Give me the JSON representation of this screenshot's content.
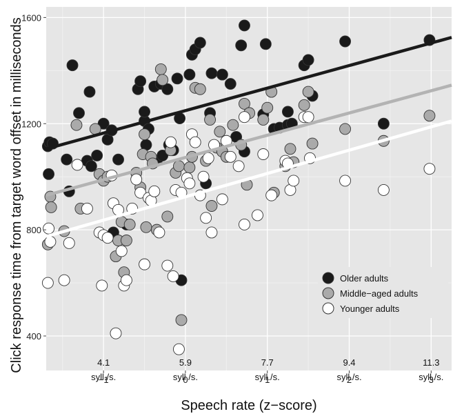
{
  "chart_data": {
    "type": "scatter",
    "xlabel": "Speech rate (z−score)",
    "ylabel": "Click response time from target word offset in milliseconds",
    "xlim": [
      -1.7,
      3.25
    ],
    "ylim": [
      270,
      1640
    ],
    "x_ticks": [
      -1,
      0,
      1,
      2,
      3
    ],
    "x_tick_labels": [
      "−1",
      "0",
      "1",
      "2",
      "3"
    ],
    "y_ticks": [
      400,
      800,
      1200,
      1600
    ],
    "y_tick_labels": [
      "400",
      "800",
      "1200",
      "1600"
    ],
    "grid": true,
    "legend_position": "bottom-right",
    "rate_annotations": [
      {
        "x": -1,
        "rate": "4.1",
        "unit": "syll./s."
      },
      {
        "x": 0,
        "rate": "5.9",
        "unit": "syll./s."
      },
      {
        "x": 1,
        "rate": "7.7",
        "unit": "syll./s."
      },
      {
        "x": 2,
        "rate": "9.4",
        "unit": "syll./s."
      },
      {
        "x": 3,
        "rate": "11.3",
        "unit": "syll./s."
      }
    ],
    "series": [
      {
        "name": "Older adults",
        "color": "#1a1a1a",
        "line_color": "#1a1a1a",
        "fit": [
          [
            -1.7,
            1105
          ],
          [
            3.25,
            1525
          ]
        ],
        "points": [
          [
            -1.68,
            1115
          ],
          [
            -1.66,
            1130
          ],
          [
            -1.67,
            1010
          ],
          [
            -1.62,
            1125
          ],
          [
            -1.45,
            1065
          ],
          [
            -1.42,
            945
          ],
          [
            -1.38,
            1420
          ],
          [
            -1.3,
            1240
          ],
          [
            -1.17,
            1320
          ],
          [
            -1.2,
            1060
          ],
          [
            -1.15,
            1040
          ],
          [
            -1.08,
            1080
          ],
          [
            -1.0,
            1200
          ],
          [
            -0.95,
            1140
          ],
          [
            -0.9,
            1175
          ],
          [
            -0.82,
            1065
          ],
          [
            -0.9,
            780
          ],
          [
            -0.88,
            790
          ],
          [
            -0.72,
            820
          ],
          [
            -0.58,
            1330
          ],
          [
            -0.55,
            1360
          ],
          [
            -0.5,
            1210
          ],
          [
            -0.5,
            1245
          ],
          [
            -0.48,
            1120
          ],
          [
            -0.45,
            1180
          ],
          [
            -0.38,
            1340
          ],
          [
            -0.35,
            1060
          ],
          [
            -0.3,
            1350
          ],
          [
            -0.28,
            1080
          ],
          [
            -0.22,
            1330
          ],
          [
            -0.2,
            1120
          ],
          [
            -0.15,
            1100
          ],
          [
            -0.1,
            1370
          ],
          [
            -0.07,
            1220
          ],
          [
            -0.05,
            610
          ],
          [
            0.05,
            1385
          ],
          [
            0.08,
            1460
          ],
          [
            0.12,
            1480
          ],
          [
            0.18,
            1505
          ],
          [
            0.25,
            975
          ],
          [
            0.3,
            1240
          ],
          [
            0.32,
            1390
          ],
          [
            0.45,
            1385
          ],
          [
            0.55,
            1350
          ],
          [
            0.62,
            1150
          ],
          [
            0.68,
            1495
          ],
          [
            0.72,
            1570
          ],
          [
            0.72,
            1095
          ],
          [
            0.95,
            1235
          ],
          [
            0.98,
            1500
          ],
          [
            1.08,
            1180
          ],
          [
            1.15,
            1185
          ],
          [
            1.25,
            1245
          ],
          [
            1.25,
            1195
          ],
          [
            1.3,
            1200
          ],
          [
            1.45,
            1420
          ],
          [
            1.5,
            1440
          ],
          [
            1.55,
            1305
          ],
          [
            1.95,
            1510
          ],
          [
            2.42,
            1200
          ],
          [
            2.98,
            1515
          ]
        ]
      },
      {
        "name": "Middle−aged adults",
        "color": "#aaaaaa",
        "line_color": "#b3b3b3",
        "fit": [
          [
            -1.7,
            930
          ],
          [
            3.25,
            1345
          ]
        ],
        "points": [
          [
            -1.68,
            745
          ],
          [
            -1.65,
            925
          ],
          [
            -1.64,
            885
          ],
          [
            -1.48,
            795
          ],
          [
            -1.33,
            1195
          ],
          [
            -1.28,
            880
          ],
          [
            -1.1,
            1180
          ],
          [
            -1.05,
            1010
          ],
          [
            -1.0,
            985
          ],
          [
            -0.95,
            1000
          ],
          [
            -0.85,
            700
          ],
          [
            -0.82,
            760
          ],
          [
            -0.78,
            830
          ],
          [
            -0.75,
            640
          ],
          [
            -0.72,
            760
          ],
          [
            -0.68,
            820
          ],
          [
            -0.6,
            1015
          ],
          [
            -0.55,
            960
          ],
          [
            -0.52,
            1085
          ],
          [
            -0.5,
            1160
          ],
          [
            -0.48,
            810
          ],
          [
            -0.42,
            1075
          ],
          [
            -0.4,
            1050
          ],
          [
            -0.35,
            800
          ],
          [
            -0.3,
            1405
          ],
          [
            -0.28,
            1365
          ],
          [
            -0.22,
            850
          ],
          [
            -0.18,
            1100
          ],
          [
            -0.12,
            1015
          ],
          [
            -0.08,
            1040
          ],
          [
            -0.05,
            460
          ],
          [
            0.05,
            1035
          ],
          [
            0.08,
            1075
          ],
          [
            0.12,
            1335
          ],
          [
            0.18,
            1330
          ],
          [
            0.25,
            1060
          ],
          [
            0.3,
            1215
          ],
          [
            0.32,
            890
          ],
          [
            0.38,
            1110
          ],
          [
            0.42,
            1170
          ],
          [
            0.45,
            1095
          ],
          [
            0.5,
            1075
          ],
          [
            0.58,
            1195
          ],
          [
            0.68,
            1120
          ],
          [
            0.72,
            1275
          ],
          [
            0.75,
            970
          ],
          [
            0.78,
            1240
          ],
          [
            0.95,
            1215
          ],
          [
            1.0,
            1260
          ],
          [
            1.05,
            1320
          ],
          [
            1.08,
            940
          ],
          [
            1.22,
            1040
          ],
          [
            1.28,
            1105
          ],
          [
            1.32,
            1055
          ],
          [
            1.45,
            1270
          ],
          [
            1.5,
            1320
          ],
          [
            1.55,
            1125
          ],
          [
            1.95,
            1180
          ],
          [
            2.42,
            1135
          ],
          [
            2.98,
            1230
          ]
        ]
      },
      {
        "name": "Younger adults",
        "color": "#ffffff",
        "line_color": "#ffffff",
        "fit": [
          [
            -1.7,
            775
          ],
          [
            3.25,
            1210
          ]
        ],
        "points": [
          [
            -1.68,
            600
          ],
          [
            -1.67,
            805
          ],
          [
            -1.65,
            755
          ],
          [
            -1.48,
            610
          ],
          [
            -1.42,
            750
          ],
          [
            -1.32,
            1045
          ],
          [
            -1.2,
            880
          ],
          [
            -1.05,
            790
          ],
          [
            -1.02,
            590
          ],
          [
            -1.0,
            780
          ],
          [
            -0.95,
            770
          ],
          [
            -0.9,
            1005
          ],
          [
            -0.88,
            900
          ],
          [
            -0.85,
            410
          ],
          [
            -0.82,
            875
          ],
          [
            -0.78,
            720
          ],
          [
            -0.75,
            590
          ],
          [
            -0.72,
            610
          ],
          [
            -0.65,
            880
          ],
          [
            -0.6,
            990
          ],
          [
            -0.55,
            940
          ],
          [
            -0.5,
            670
          ],
          [
            -0.45,
            920
          ],
          [
            -0.42,
            910
          ],
          [
            -0.38,
            945
          ],
          [
            -0.32,
            790
          ],
          [
            -0.22,
            665
          ],
          [
            -0.18,
            1130
          ],
          [
            -0.15,
            625
          ],
          [
            -0.12,
            950
          ],
          [
            -0.08,
            350
          ],
          [
            -0.05,
            940
          ],
          [
            0.02,
            995
          ],
          [
            0.05,
            975
          ],
          [
            0.08,
            1160
          ],
          [
            0.12,
            1130
          ],
          [
            0.18,
            930
          ],
          [
            0.22,
            1000
          ],
          [
            0.25,
            845
          ],
          [
            0.28,
            1070
          ],
          [
            0.32,
            790
          ],
          [
            0.35,
            1120
          ],
          [
            0.45,
            915
          ],
          [
            0.5,
            1135
          ],
          [
            0.55,
            1075
          ],
          [
            0.65,
            1040
          ],
          [
            0.72,
            1225
          ],
          [
            0.72,
            820
          ],
          [
            0.88,
            855
          ],
          [
            0.95,
            1085
          ],
          [
            1.05,
            930
          ],
          [
            1.22,
            1060
          ],
          [
            1.25,
            1050
          ],
          [
            1.28,
            950
          ],
          [
            1.32,
            985
          ],
          [
            1.45,
            1225
          ],
          [
            1.5,
            1225
          ],
          [
            1.52,
            1070
          ],
          [
            1.95,
            985
          ],
          [
            2.42,
            950
          ],
          [
            2.98,
            1030
          ]
        ]
      }
    ]
  }
}
